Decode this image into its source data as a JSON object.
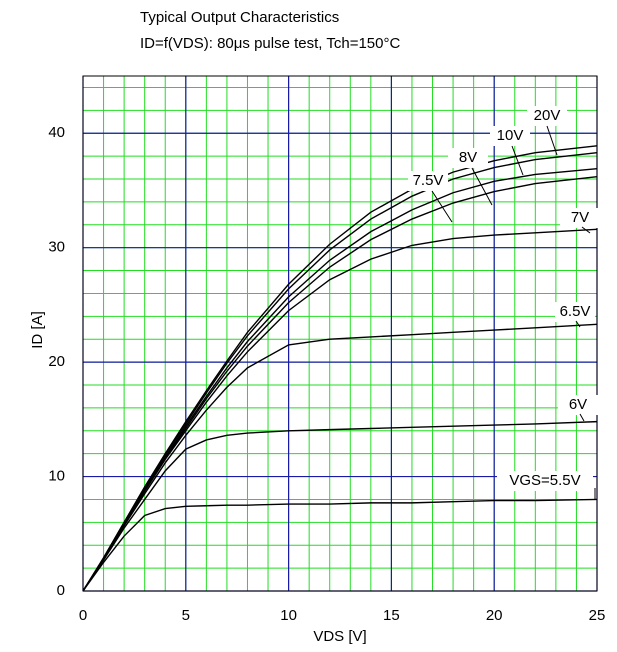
{
  "chart_data": {
    "type": "line",
    "title": "Typical Output Characteristics",
    "subtitle": "ID=f(VDS): 80μs pulse test, Tch=150°C",
    "xlabel": "VDS [V]",
    "ylabel": "ID [A]",
    "x": [
      0,
      1,
      2,
      3,
      4,
      5,
      6,
      7,
      8,
      10,
      12,
      14,
      16,
      18,
      20,
      22,
      25
    ],
    "series": [
      {
        "name": "20V",
        "color": "#000000",
        "values": [
          0,
          2.9,
          6,
          9.1,
          12,
          14.8,
          17.5,
          20.1,
          22.6,
          26.8,
          30.3,
          33.1,
          35.1,
          36.6,
          37.6,
          38.3,
          38.9
        ]
      },
      {
        "name": "10V",
        "color": "#000000",
        "values": [
          0,
          2.9,
          6,
          9,
          11.9,
          14.6,
          17.3,
          19.9,
          22.3,
          26.4,
          29.8,
          32.5,
          34.5,
          36,
          37,
          37.7,
          38.3
        ]
      },
      {
        "name": "8V",
        "color": "#000000",
        "values": [
          0,
          2.8,
          5.9,
          8.9,
          11.7,
          14.4,
          17,
          19.5,
          21.8,
          25.7,
          28.9,
          31.4,
          33.3,
          34.8,
          35.8,
          36.4,
          36.9
        ]
      },
      {
        "name": "7.5V",
        "color": "#000000",
        "values": [
          0,
          2.8,
          5.8,
          8.8,
          11.6,
          14.2,
          16.8,
          19.2,
          21.4,
          25.2,
          28.3,
          30.7,
          32.5,
          33.9,
          34.9,
          35.6,
          36.2
        ]
      },
      {
        "name": "7V",
        "color": "#000000",
        "values": [
          0,
          2.8,
          5.8,
          8.7,
          11.5,
          14,
          16.5,
          18.8,
          20.9,
          24.5,
          27.2,
          29,
          30.2,
          30.8,
          31.1,
          31.3,
          31.6
        ]
      },
      {
        "name": "6.5V",
        "color": "#000000",
        "values": [
          0,
          2.8,
          5.7,
          8.5,
          11.2,
          13.6,
          15.8,
          17.8,
          19.5,
          21.5,
          22,
          22.2,
          22.4,
          22.6,
          22.8,
          23,
          23.3
        ]
      },
      {
        "name": "6V",
        "color": "#000000",
        "values": [
          0,
          2.7,
          5.5,
          8,
          10.5,
          12.4,
          13.2,
          13.6,
          13.8,
          14,
          14.1,
          14.2,
          14.3,
          14.4,
          14.5,
          14.6,
          14.8
        ]
      },
      {
        "name": "VGS=5.5V",
        "color": "#000000",
        "values": [
          0,
          2.5,
          4.8,
          6.6,
          7.2,
          7.4,
          7.45,
          7.5,
          7.5,
          7.6,
          7.6,
          7.7,
          7.7,
          7.8,
          7.9,
          7.9,
          8.0
        ]
      }
    ],
    "xlim": [
      0,
      25
    ],
    "xticks": [
      0,
      5,
      10,
      15,
      20,
      25
    ],
    "ylim": [
      0,
      45
    ],
    "yticks": [
      0,
      10,
      20,
      30,
      40
    ],
    "grid": true
  }
}
